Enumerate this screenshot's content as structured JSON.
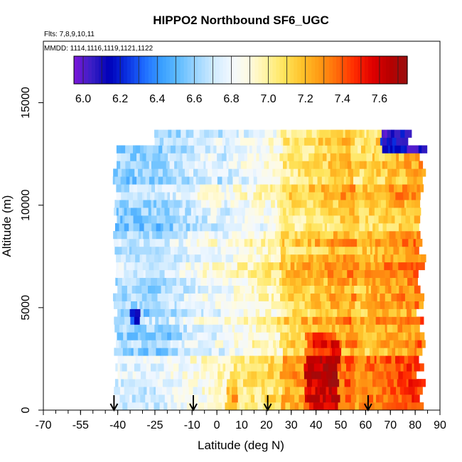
{
  "chart_data": {
    "type": "heatmap",
    "title": "HIPPO2 Northbound SF6_UGC",
    "flights_label": "Flts: 7,8,9,10,11",
    "dates_label": "MMDD: 1114,1116,1119,1121,1122",
    "xlabel": "Latitude (deg N)",
    "ylabel": "Altitude (m)",
    "xlim": [
      -70,
      90
    ],
    "ylim": [
      0,
      18000
    ],
    "x_tick_labels": [
      "-70",
      "-55",
      "-40",
      "-25",
      "-10",
      "0",
      "10",
      "20",
      "30",
      "40",
      "50",
      "60",
      "70",
      "80",
      "90"
    ],
    "x_tick_values": [
      -70,
      -55,
      -40,
      -25,
      -10,
      0,
      10,
      20,
      30,
      40,
      50,
      60,
      70,
      80,
      90
    ],
    "x_minor_step": 5,
    "y_tick_labels": [
      "0",
      "5000",
      "10000",
      "15000"
    ],
    "y_tick_values": [
      0,
      5000,
      10000,
      15000
    ],
    "colorbar": {
      "range": [
        5.95,
        7.75
      ],
      "tick_labels": [
        "6.0",
        "6.2",
        "6.4",
        "6.6",
        "6.8",
        "7.0",
        "7.2",
        "7.4",
        "7.6"
      ],
      "tick_values": [
        6.0,
        6.2,
        6.4,
        6.6,
        6.8,
        7.0,
        7.2,
        7.4,
        7.6
      ],
      "colors": [
        "#7b16d9",
        "#3a1fc4",
        "#0000b8",
        "#0a2fe0",
        "#1e6cff",
        "#3aa0ff",
        "#62bdff",
        "#9dd6ff",
        "#d2ecff",
        "#f2f8ff",
        "#fffbe0",
        "#fff3a0",
        "#ffe45a",
        "#ffc22a",
        "#ff9a14",
        "#ff6a0a",
        "#ff2a00",
        "#e00000",
        "#b80000",
        "#9a1010"
      ]
    },
    "data_extent": {
      "lat_south": -42,
      "lat_north": 83,
      "alt_top": 13500,
      "high_lat_north": 77,
      "high_lat_start": -26,
      "high_alt_start": 12600
    },
    "profile_markers_lat": [
      -41.5,
      -9.5,
      20.5,
      61
    ]
  }
}
